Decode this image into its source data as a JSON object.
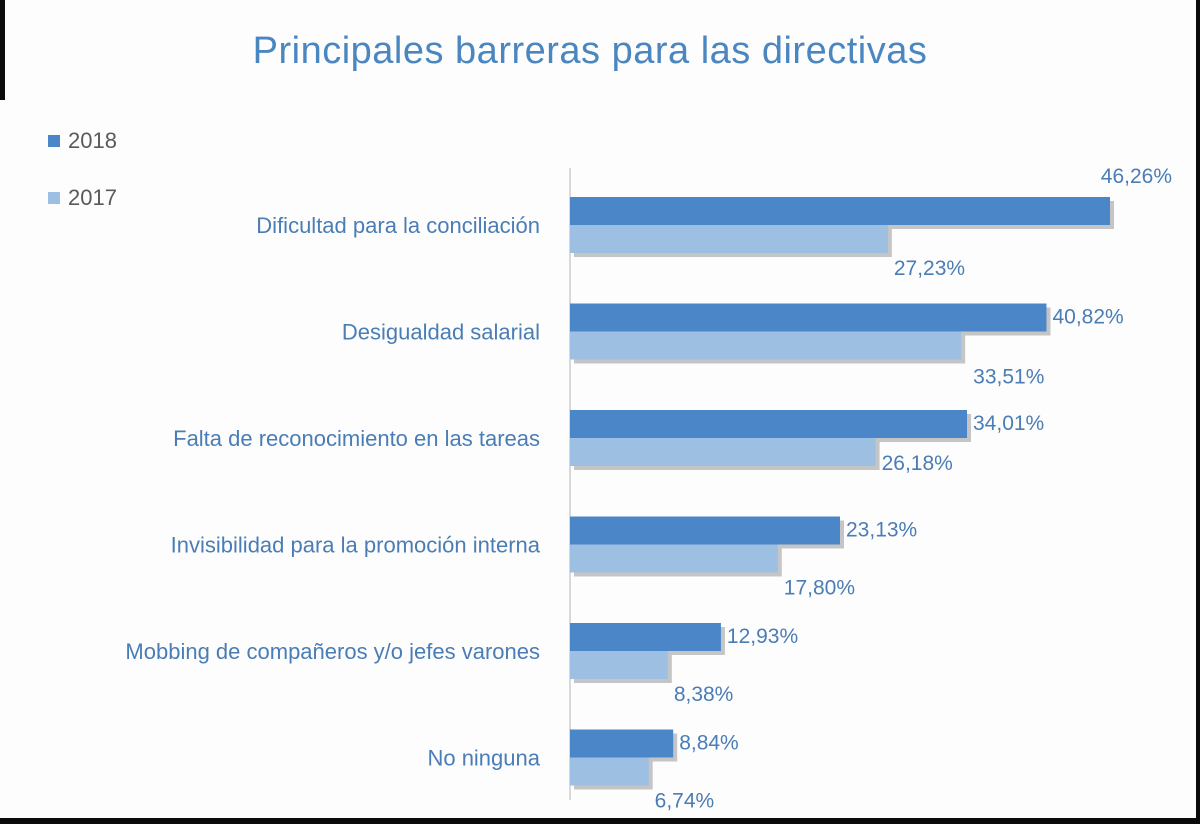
{
  "chart_data": {
    "type": "bar",
    "orientation": "horizontal",
    "title": "Principales barreras para las directivas",
    "categories": [
      "Dificultad para la conciliación",
      "Desigualdad salarial",
      "Falta de reconocimiento en las tareas",
      "Invisibilidad para la promoción interna",
      "Mobbing de compañeros y/o jefes varones",
      "No ninguna"
    ],
    "series": [
      {
        "name": "2018",
        "color": "#4a86c8",
        "values": [
          46.26,
          40.82,
          34.01,
          23.13,
          12.93,
          8.84
        ],
        "labels": [
          "46,26%",
          "40,82%",
          "34,01%",
          "23,13%",
          "12,93%",
          "8,84%"
        ]
      },
      {
        "name": "2017",
        "color": "#9dbfe2",
        "values": [
          27.23,
          33.51,
          26.18,
          17.8,
          8.38,
          6.74
        ],
        "labels": [
          "27,23%",
          "33,51%",
          "26,18%",
          "17,80%",
          "8,38%",
          "6,74%"
        ]
      }
    ],
    "xlabel": "",
    "ylabel": "",
    "xlim": [
      0,
      46.26
    ],
    "grid": false,
    "legend": "top-left"
  }
}
